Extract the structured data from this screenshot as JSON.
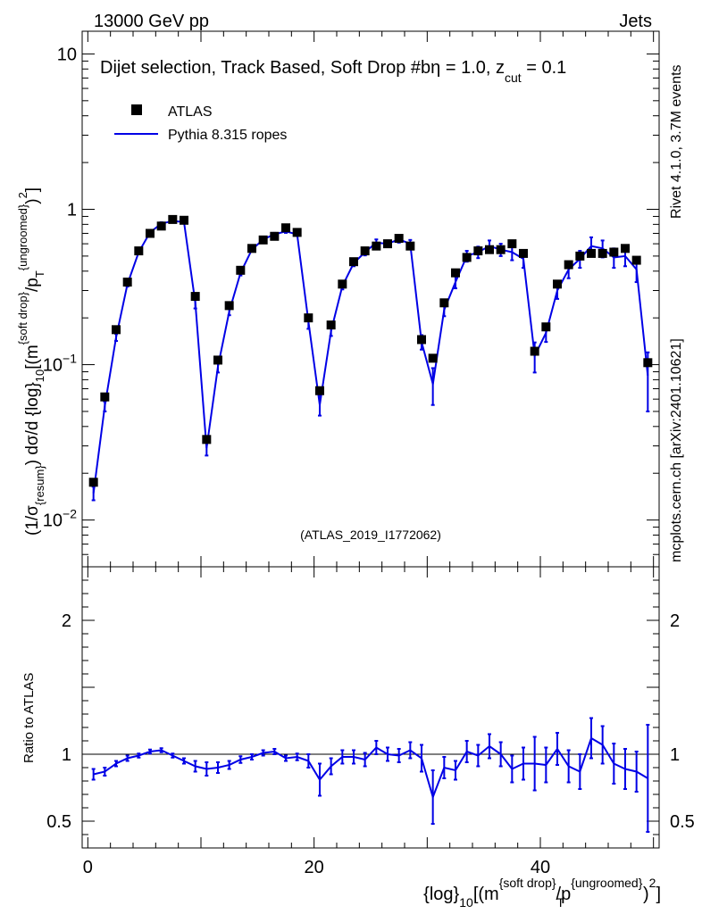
{
  "header": {
    "left": "13000 GeV pp",
    "right": "Jets"
  },
  "side": {
    "rivet": "Rivet 4.1.0,  3.7M events",
    "mcplots": "mcplots.cern.ch [arXiv:2401.10621]"
  },
  "colors": {
    "data": "#000000",
    "mc": "#0000e6",
    "muted": "#8c8c8c"
  },
  "chart_data": {
    "type": "line",
    "title": "Dijet selection, Track Based, Soft Drop #bη = 1.0, z_cut = 0.1",
    "title_parts": {
      "main": "Dijet selection, Track Based, Soft Drop #bη = 1.0, z",
      "sub": "cut",
      "tail": " = 0.1"
    },
    "analysis_label": "(ATLAS_2019_I1772062)",
    "legend": [
      "ATLAS",
      "Pythia 8.315 ropes"
    ],
    "xlabel": "{log}_10[(m^{soft drop}/p_T^{ungroomed})^2]",
    "xlabel_parts": {
      "a": "{log}",
      "a_sub": "10",
      "b": "[(m",
      "b_sup": "{soft drop}",
      "c": "/p",
      "c_sup": "{ungroomed}",
      "c_sub": "T",
      "d": ")",
      "d_sup": "2",
      "e": "]"
    },
    "ylabel": "(1/σ_{resum}) dσ/d {log}_10[(m^{soft drop}/p_T^{ungroomed})^2]",
    "ylabel_parts": {
      "a": "(1/σ",
      "a_sub": "{resum}",
      "b": ") dσ/d {log}",
      "b_sub": "10",
      "c": "[(m",
      "c_sup": "{soft drop}",
      "d": "/p",
      "d_sub": "T",
      "d_sup": "{ungroomed}",
      "e": ")",
      "e_sup": "2",
      "f": "]"
    },
    "ratio_ylabel": "Ratio to ATLAS",
    "xlim": [
      -0.5,
      50.5
    ],
    "ylim": [
      0.005,
      14
    ],
    "ratio_ylim": [
      0.3,
      2.4
    ],
    "x_ticks": [
      0,
      20,
      40
    ],
    "y_ticks": [
      {
        "value": 0.01,
        "base": "10",
        "exp": "−2"
      },
      {
        "value": 0.1,
        "base": "10",
        "exp": "−1"
      },
      {
        "value": 1,
        "base": "1",
        "exp": ""
      },
      {
        "value": 10,
        "base": "10",
        "exp": ""
      }
    ],
    "ratio_ticks": [
      {
        "value": 0.5,
        "label": "0.5"
      },
      {
        "value": 1,
        "label": "1"
      },
      {
        "value": 2,
        "label": "2"
      }
    ],
    "x": [
      0.5,
      1.5,
      2.5,
      3.5,
      4.5,
      5.5,
      6.5,
      7.5,
      8.5,
      9.5,
      10.5,
      11.5,
      12.5,
      13.5,
      14.5,
      15.5,
      16.5,
      17.5,
      18.5,
      19.5,
      20.5,
      21.5,
      22.5,
      23.5,
      24.5,
      25.5,
      26.5,
      27.5,
      28.5,
      29.5,
      30.5,
      31.5,
      32.5,
      33.5,
      34.5,
      35.5,
      36.5,
      37.5,
      38.5,
      39.5,
      40.5,
      41.5,
      42.5,
      43.5,
      44.5,
      45.5,
      46.5,
      47.5,
      48.5,
      49.5
    ],
    "atlas": [
      0.0175,
      0.062,
      0.168,
      0.34,
      0.54,
      0.7,
      0.78,
      0.86,
      0.85,
      0.275,
      0.033,
      0.107,
      0.24,
      0.405,
      0.56,
      0.635,
      0.67,
      0.76,
      0.71,
      0.2,
      0.068,
      0.18,
      0.33,
      0.46,
      0.54,
      0.58,
      0.6,
      0.65,
      0.58,
      0.145,
      0.11,
      0.25,
      0.39,
      0.49,
      0.54,
      0.55,
      0.55,
      0.6,
      0.52,
      0.122,
      0.175,
      0.33,
      0.44,
      0.5,
      0.52,
      0.52,
      0.53,
      0.56,
      0.47,
      0.103
    ],
    "series": [
      {
        "name": "Pythia 8.315 ropes",
        "values": [
          0.0149,
          0.054,
          0.15,
          0.33,
          0.53,
          0.71,
          0.81,
          0.84,
          0.83,
          0.25,
          0.029,
          0.097,
          0.22,
          0.39,
          0.55,
          0.64,
          0.69,
          0.72,
          0.69,
          0.19,
          0.055,
          0.165,
          0.32,
          0.45,
          0.53,
          0.61,
          0.6,
          0.64,
          0.6,
          0.14,
          0.075,
          0.225,
          0.34,
          0.5,
          0.53,
          0.58,
          0.55,
          0.53,
          0.48,
          0.114,
          0.16,
          0.3,
          0.41,
          0.48,
          0.58,
          0.56,
          0.49,
          0.5,
          0.41,
          0.085
        ],
        "errors": [
          0.0015,
          0.004,
          0.008,
          0.012,
          0.015,
          0.015,
          0.015,
          0.015,
          0.015,
          0.02,
          0.003,
          0.008,
          0.012,
          0.015,
          0.015,
          0.015,
          0.015,
          0.015,
          0.015,
          0.02,
          0.008,
          0.012,
          0.015,
          0.02,
          0.025,
          0.03,
          0.03,
          0.03,
          0.035,
          0.015,
          0.02,
          0.02,
          0.03,
          0.04,
          0.045,
          0.05,
          0.05,
          0.06,
          0.06,
          0.025,
          0.02,
          0.035,
          0.05,
          0.06,
          0.08,
          0.07,
          0.07,
          0.07,
          0.07,
          0.035
        ],
        "ratio": [
          0.85,
          0.87,
          0.93,
          0.97,
          0.99,
          1.02,
          1.03,
          0.99,
          0.95,
          0.91,
          0.89,
          0.9,
          0.92,
          0.96,
          0.98,
          1.01,
          1.02,
          0.97,
          0.98,
          0.95,
          0.81,
          0.91,
          0.98,
          0.98,
          0.96,
          1.05,
          1.0,
          0.99,
          1.03,
          0.97,
          0.68,
          0.9,
          0.88,
          1.02,
          0.99,
          1.06,
          1.0,
          0.89,
          0.93,
          0.93,
          0.92,
          1.04,
          0.91,
          0.87,
          1.12,
          1.07,
          0.93,
          0.89,
          0.87,
          0.82
        ],
        "ratio_errors": [
          0.04,
          0.03,
          0.02,
          0.02,
          0.015,
          0.015,
          0.015,
          0.015,
          0.02,
          0.04,
          0.05,
          0.04,
          0.03,
          0.025,
          0.02,
          0.02,
          0.02,
          0.02,
          0.025,
          0.05,
          0.12,
          0.06,
          0.05,
          0.05,
          0.05,
          0.05,
          0.05,
          0.05,
          0.06,
          0.1,
          0.2,
          0.08,
          0.07,
          0.08,
          0.08,
          0.09,
          0.09,
          0.1,
          0.12,
          0.2,
          0.13,
          0.12,
          0.12,
          0.13,
          0.15,
          0.14,
          0.15,
          0.15,
          0.15,
          0.4
        ]
      }
    ]
  }
}
